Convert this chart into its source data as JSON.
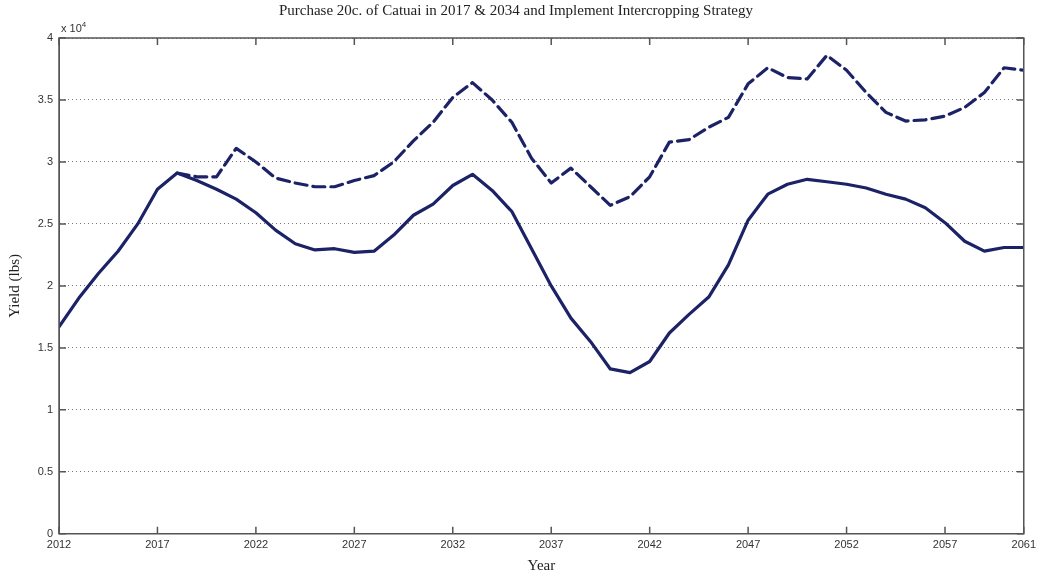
{
  "chart_data": {
    "type": "line",
    "title": "Purchase 20c. of Catuai in 2017 & 2034 and Implement Intercropping Strategy",
    "xlabel": "Year",
    "ylabel": "Yield (lbs)",
    "annotations": [
      "x 10$^{4}$"
    ],
    "x": [
      2012,
      2013,
      2014,
      2015,
      2016,
      2017,
      2018,
      2019,
      2020,
      2021,
      2022,
      2023,
      2024,
      2025,
      2026,
      2027,
      2028,
      2029,
      2030,
      2031,
      2032,
      2033,
      2034,
      2035,
      2036,
      2037,
      2038,
      2039,
      2040,
      2041,
      2042,
      2043,
      2044,
      2045,
      2046,
      2047,
      2048,
      2049,
      2050,
      2051,
      2052,
      2053,
      2054,
      2055,
      2056,
      2057,
      2058,
      2059,
      2060,
      2061
    ],
    "series": [
      {
        "color": "#1c2266",
        "line_style": "solid",
        "values": [
          1.67,
          1.9,
          2.1,
          2.28,
          2.5,
          2.78,
          2.91,
          2.85,
          2.78,
          2.7,
          2.59,
          2.45,
          2.34,
          2.29,
          2.3,
          2.27,
          2.28,
          2.41,
          2.57,
          2.66,
          2.81,
          2.9,
          2.77,
          2.6,
          2.3,
          2.0,
          1.74,
          1.55,
          1.33,
          1.3,
          1.39,
          1.62,
          1.77,
          1.91,
          2.17,
          2.53,
          2.74,
          2.82,
          2.86,
          2.84,
          2.82,
          2.79,
          2.74,
          2.7,
          2.63,
          2.51,
          2.36,
          2.28,
          2.31,
          2.31
        ]
      },
      {
        "color": "#1c2266",
        "line_style": "dashed",
        "values": [
          null,
          null,
          null,
          null,
          null,
          null,
          2.91,
          2.88,
          2.88,
          3.11,
          3.0,
          2.87,
          2.83,
          2.8,
          2.8,
          2.85,
          2.89,
          3.0,
          3.17,
          3.32,
          3.52,
          3.64,
          3.5,
          3.32,
          3.03,
          2.83,
          2.95,
          2.8,
          2.65,
          2.72,
          2.88,
          3.16,
          3.18,
          3.28,
          3.36,
          3.63,
          3.76,
          3.68,
          3.67,
          3.86,
          3.74,
          3.56,
          3.4,
          3.33,
          3.34,
          3.37,
          3.44,
          3.56,
          3.76,
          3.74
        ]
      }
    ],
    "xlim": [
      2012,
      2061
    ],
    "xticks": [
      2012,
      2017,
      2022,
      2027,
      2032,
      2037,
      2042,
      2047,
      2052,
      2057,
      2061
    ],
    "ylim": [
      0,
      4
    ],
    "yticks": [
      0,
      0.5,
      1,
      1.5,
      2,
      2.5,
      3,
      3.5,
      4
    ],
    "grid": "y",
    "legend": false,
    "marker": "none"
  }
}
